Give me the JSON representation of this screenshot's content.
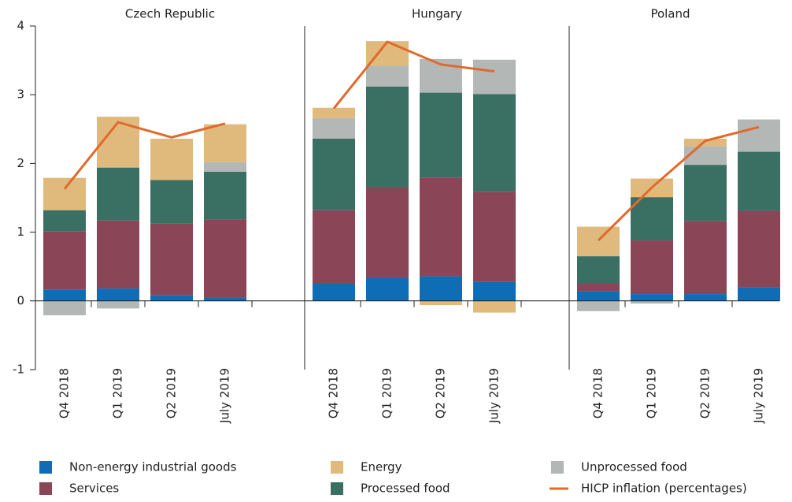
{
  "chart_data": {
    "type": "bar",
    "stacked": true,
    "ylim": [
      -1,
      4
    ],
    "yticks": [
      -1,
      0,
      1,
      2,
      3,
      4
    ],
    "legend": "bottom",
    "panels": [
      "Czech Republic",
      "Hungary",
      "Poland"
    ],
    "categories": [
      [
        "Q4 2018",
        "Q1 2019",
        "Q2 2019",
        "July 2019"
      ],
      [
        "Q4 2018",
        "Q1 2019",
        "Q2 2019",
        "July 2019"
      ],
      [
        "Q4 2018",
        "Q1 2019",
        "Q2 2019",
        "July 2019"
      ]
    ],
    "series": [
      {
        "name": "Non-energy industrial goods",
        "color": "#0f6db6",
        "values": [
          [
            0.16,
            0.18,
            0.08,
            0.05
          ],
          [
            0.25,
            0.33,
            0.36,
            0.28
          ],
          [
            0.14,
            0.1,
            0.1,
            0.2
          ]
        ]
      },
      {
        "name": "Services",
        "color": "#8a4557",
        "values": [
          [
            0.85,
            0.99,
            1.05,
            1.13
          ],
          [
            1.07,
            1.33,
            1.43,
            1.31
          ],
          [
            0.11,
            0.78,
            1.06,
            1.11
          ]
        ]
      },
      {
        "name": "Processed food",
        "color": "#3a6f64",
        "values": [
          [
            0.31,
            0.77,
            0.63,
            0.7
          ],
          [
            1.04,
            1.46,
            1.24,
            1.42
          ],
          [
            0.4,
            0.63,
            0.82,
            0.86
          ]
        ]
      },
      {
        "name": "Unprocessed food",
        "color": "#b3b7b6",
        "values": [
          [
            -0.21,
            -0.11,
            0,
            0.14
          ],
          [
            0.3,
            0.3,
            0.49,
            0.5
          ],
          [
            -0.15,
            -0.04,
            0.27,
            0.47
          ]
        ]
      },
      {
        "name": "Energy",
        "color": "#dfba7c",
        "values": [
          [
            0.47,
            0.74,
            0.6,
            0.55
          ],
          [
            0.15,
            0.36,
            -0.06,
            -0.17
          ],
          [
            0.43,
            0.27,
            0.11,
            0
          ]
        ]
      },
      {
        "name": "HICP inflation (percentages)",
        "type": "line",
        "color": "#e06a2c",
        "values": [
          [
            1.63,
            2.6,
            2.38,
            2.58
          ],
          [
            2.8,
            3.77,
            3.44,
            3.34
          ],
          [
            0.88,
            1.65,
            2.33,
            2.53
          ]
        ]
      }
    ]
  }
}
